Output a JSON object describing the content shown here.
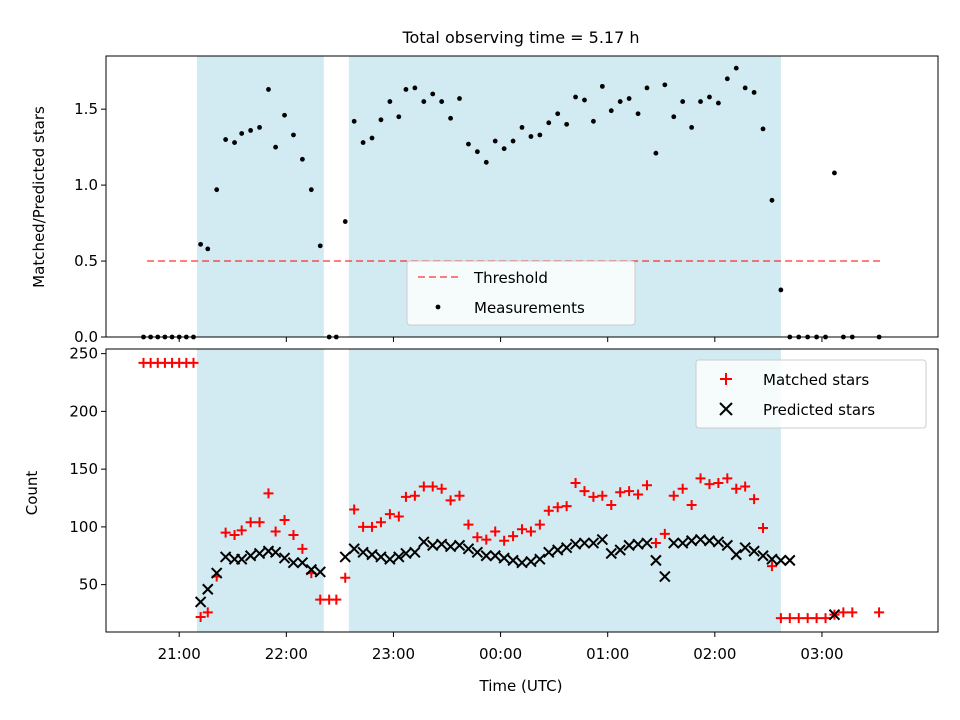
{
  "title": "Total observing time = 5.17 h",
  "colors": {
    "shade": "#add8e6",
    "threshold": "#ff0000",
    "measurements": "#000000",
    "matched": "#ff0000",
    "predicted": "#000000"
  },
  "chart_data": [
    {
      "type": "scatter",
      "panel": "top",
      "title": "Total observing time = 5.17 h",
      "ylabel": "Matched/Predicted stars",
      "xlabel": "",
      "xlim": [
        "20:19",
        "04:05"
      ],
      "ylim": [
        0,
        1.85
      ],
      "yticks": [
        0.0,
        0.5,
        1.0,
        1.5
      ],
      "ytick_labels": [
        "0.0",
        "0.5",
        "1.0",
        "1.5"
      ],
      "legend": {
        "placement": "bottom-center",
        "entries": [
          "Threshold",
          "Measurements"
        ]
      },
      "shaded_intervals": [
        [
          "21:10",
          "22:21"
        ],
        [
          "22:35",
          "02:37"
        ]
      ],
      "series": [
        {
          "name": "Threshold",
          "kind": "dashed-line",
          "x": [
            "20:42",
            "03:33"
          ],
          "y": [
            0.5,
            0.5
          ]
        },
        {
          "name": "Measurements",
          "kind": "points",
          "x": [
            "20:40",
            "20:44",
            "20:48",
            "20:52",
            "20:56",
            "21:00",
            "21:04",
            "21:08",
            "21:12",
            "21:16",
            "21:21",
            "21:26",
            "21:31",
            "21:35",
            "21:40",
            "21:45",
            "21:50",
            "21:54",
            "21:59",
            "22:04",
            "22:09",
            "22:14",
            "22:19",
            "22:24",
            "22:28",
            "22:33",
            "22:38",
            "22:43",
            "22:48",
            "22:53",
            "22:58",
            "23:03",
            "23:07",
            "23:12",
            "23:17",
            "23:22",
            "23:27",
            "23:32",
            "23:37",
            "23:42",
            "23:47",
            "23:52",
            "23:57",
            "00:02",
            "00:07",
            "00:12",
            "00:17",
            "00:22",
            "00:27",
            "00:32",
            "00:37",
            "00:42",
            "00:47",
            "00:52",
            "00:57",
            "01:02",
            "01:07",
            "01:12",
            "01:17",
            "01:22",
            "01:27",
            "01:32",
            "01:37",
            "01:42",
            "01:47",
            "01:52",
            "01:57",
            "02:02",
            "02:07",
            "02:12",
            "02:17",
            "02:22",
            "02:27",
            "02:32",
            "02:37",
            "02:42",
            "02:47",
            "02:52",
            "02:57",
            "03:02",
            "03:07",
            "03:12",
            "03:17",
            "03:32"
          ],
          "y": [
            0,
            0,
            0,
            0,
            0,
            0,
            0,
            0,
            0.61,
            0.58,
            0.97,
            1.3,
            1.28,
            1.34,
            1.36,
            1.38,
            1.63,
            1.25,
            1.46,
            1.33,
            1.17,
            0.97,
            0.6,
            0,
            0,
            0.76,
            1.42,
            1.28,
            1.31,
            1.43,
            1.55,
            1.45,
            1.63,
            1.64,
            1.55,
            1.6,
            1.55,
            1.44,
            1.57,
            1.27,
            1.22,
            1.15,
            1.29,
            1.24,
            1.29,
            1.38,
            1.32,
            1.33,
            1.41,
            1.47,
            1.4,
            1.58,
            1.56,
            1.42,
            1.65,
            1.49,
            1.55,
            1.57,
            1.47,
            1.64,
            1.21,
            1.66,
            1.45,
            1.55,
            1.38,
            1.55,
            1.58,
            1.54,
            1.7,
            1.77,
            1.64,
            1.61,
            1.37,
            0.9,
            0.31,
            0,
            0,
            0,
            0,
            0,
            1.08,
            0,
            0,
            0
          ]
        }
      ]
    },
    {
      "type": "scatter",
      "panel": "bottom",
      "xlabel": "Time (UTC)",
      "ylabel": "Count",
      "xlim": [
        "20:19",
        "04:05"
      ],
      "ylim": [
        9,
        254
      ],
      "xticks": [
        "21:00",
        "22:00",
        "23:00",
        "00:00",
        "01:00",
        "02:00",
        "03:00"
      ],
      "yticks": [
        50,
        100,
        150,
        200,
        250
      ],
      "legend": {
        "placement": "top-right",
        "entries": [
          "Matched stars",
          "Predicted stars"
        ]
      },
      "shaded_intervals": [
        [
          "21:10",
          "22:21"
        ],
        [
          "22:35",
          "02:37"
        ]
      ],
      "series": [
        {
          "name": "Matched stars",
          "marker": "+",
          "x": [
            "20:40",
            "20:44",
            "20:48",
            "20:52",
            "20:56",
            "21:00",
            "21:04",
            "21:08",
            "21:12",
            "21:16",
            "21:21",
            "21:26",
            "21:31",
            "21:35",
            "21:40",
            "21:45",
            "21:50",
            "21:54",
            "21:59",
            "22:04",
            "22:09",
            "22:14",
            "22:19",
            "22:24",
            "22:28",
            "22:33",
            "22:38",
            "22:43",
            "22:48",
            "22:53",
            "22:58",
            "23:03",
            "23:07",
            "23:12",
            "23:17",
            "23:22",
            "23:27",
            "23:32",
            "23:37",
            "23:42",
            "23:47",
            "23:52",
            "23:57",
            "00:02",
            "00:07",
            "00:12",
            "00:17",
            "00:22",
            "00:27",
            "00:32",
            "00:37",
            "00:42",
            "00:47",
            "00:52",
            "00:57",
            "01:02",
            "01:07",
            "01:12",
            "01:17",
            "01:22",
            "01:27",
            "01:32",
            "01:37",
            "01:42",
            "01:47",
            "01:52",
            "01:57",
            "02:02",
            "02:07",
            "02:12",
            "02:17",
            "02:22",
            "02:27",
            "02:32",
            "02:37",
            "02:42",
            "02:47",
            "02:52",
            "02:57",
            "03:02",
            "03:07",
            "03:12",
            "03:17",
            "03:32"
          ],
          "y": [
            242,
            242,
            242,
            242,
            242,
            242,
            242,
            242,
            22,
            26,
            57,
            95,
            93,
            97,
            104,
            104,
            129,
            96,
            106,
            93,
            81,
            60,
            37,
            37,
            37,
            56,
            115,
            100,
            100,
            104,
            111,
            109,
            126,
            127,
            135,
            135,
            133,
            123,
            127,
            102,
            91,
            89,
            96,
            88,
            92,
            98,
            96,
            102,
            114,
            117,
            118,
            138,
            131,
            126,
            127,
            119,
            130,
            131,
            128,
            136,
            86,
            94,
            127,
            133,
            119,
            142,
            137,
            138,
            142,
            133,
            135,
            124,
            99,
            66,
            21,
            21,
            21,
            21,
            21,
            21,
            24,
            26,
            26,
            26
          ]
        },
        {
          "name": "Predicted stars",
          "marker": "x",
          "x": [
            "21:12",
            "21:16",
            "21:21",
            "21:26",
            "21:31",
            "21:35",
            "21:40",
            "21:45",
            "21:50",
            "21:54",
            "21:59",
            "22:04",
            "22:09",
            "22:14",
            "22:19",
            "22:33",
            "22:38",
            "22:43",
            "22:48",
            "22:53",
            "22:58",
            "23:03",
            "23:07",
            "23:12",
            "23:17",
            "23:22",
            "23:27",
            "23:32",
            "23:37",
            "23:42",
            "23:47",
            "23:52",
            "23:57",
            "00:02",
            "00:07",
            "00:12",
            "00:17",
            "00:22",
            "00:27",
            "00:32",
            "00:37",
            "00:42",
            "00:47",
            "00:52",
            "00:57",
            "01:02",
            "01:07",
            "01:12",
            "01:17",
            "01:22",
            "01:27",
            "01:32",
            "01:37",
            "01:42",
            "01:47",
            "01:52",
            "01:57",
            "02:02",
            "02:07",
            "02:12",
            "02:17",
            "02:22",
            "02:27",
            "02:32",
            "02:37",
            "02:42",
            "03:07"
          ],
          "y": [
            35,
            46,
            60,
            74,
            72,
            72,
            75,
            77,
            79,
            78,
            73,
            69,
            69,
            63,
            61,
            74,
            81,
            78,
            76,
            74,
            72,
            74,
            77,
            78,
            87,
            84,
            85,
            83,
            84,
            81,
            78,
            75,
            75,
            73,
            71,
            69,
            70,
            72,
            78,
            80,
            82,
            85,
            86,
            86,
            89,
            77,
            80,
            84,
            85,
            86,
            71,
            57,
            86,
            86,
            88,
            89,
            88,
            87,
            84,
            76,
            82,
            79,
            75,
            72,
            71,
            71,
            24
          ]
        }
      ]
    }
  ]
}
